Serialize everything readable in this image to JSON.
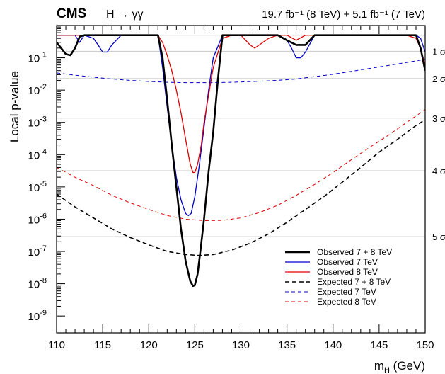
{
  "chart_data": {
    "type": "line",
    "experiment": "CMS",
    "channel": "H → γγ",
    "lumi_text": "19.7 fb⁻¹ (8 TeV) + 5.1 fb⁻¹ (7 TeV)",
    "ylabel": "Local p-value",
    "xlabel_main": "m",
    "xlabel_sub": "H",
    "xlabel_unit": " (GeV)",
    "xlim": [
      110,
      150
    ],
    "ylim": [
      3e-10,
      1.0
    ],
    "yscale": "log",
    "x_ticks": [
      110,
      115,
      120,
      125,
      130,
      135,
      140,
      145,
      150
    ],
    "y_tick_labels": [
      {
        "value": 1e-09,
        "base": "10",
        "exp": "-9"
      },
      {
        "value": 1e-08,
        "base": "10",
        "exp": "-8"
      },
      {
        "value": 1e-07,
        "base": "10",
        "exp": "-7"
      },
      {
        "value": 1e-06,
        "base": "10",
        "exp": "-6"
      },
      {
        "value": 1e-05,
        "base": "10",
        "exp": "-5"
      },
      {
        "value": 0.0001,
        "base": "10",
        "exp": "-4"
      },
      {
        "value": 0.001,
        "base": "10",
        "exp": "-3"
      },
      {
        "value": 0.01,
        "base": "10",
        "exp": "-2"
      },
      {
        "value": 0.1,
        "base": "10",
        "exp": "-1"
      }
    ],
    "significance_lines": [
      {
        "label": "1 σ",
        "p": 0.1587
      },
      {
        "label": "2 σ",
        "p": 0.02275
      },
      {
        "label": "3 σ",
        "p": 0.00135
      },
      {
        "label": "4 σ",
        "p": 3.17e-05
      },
      {
        "label": "5 σ",
        "p": 2.87e-07
      }
    ],
    "legend_position": "bottom-right",
    "series": [
      {
        "name": "Observed 7 + 8 TeV",
        "color": "#000000",
        "dash": "solid",
        "width": 2.6,
        "x": [
          110,
          110.5,
          111,
          111.5,
          112,
          112.5,
          113,
          114,
          115,
          116,
          117,
          118,
          119,
          120,
          121,
          121.5,
          122,
          122.5,
          123,
          123.5,
          124,
          124.5,
          124.8,
          125,
          125.3,
          125.6,
          126,
          126.5,
          127,
          127.5,
          128,
          129,
          130,
          131,
          132,
          133,
          134,
          135,
          136,
          137,
          138,
          139,
          140,
          145,
          149,
          149.5,
          150
        ],
        "y": [
          0.3,
          0.2,
          0.13,
          0.12,
          0.2,
          0.45,
          0.5,
          0.5,
          0.5,
          0.5,
          0.5,
          0.5,
          0.5,
          0.5,
          0.5,
          0.1,
          0.005,
          0.0002,
          1e-05,
          5e-07,
          5e-08,
          1.2e-08,
          8.5e-09,
          9e-09,
          2e-08,
          1e-07,
          1e-06,
          3e-05,
          0.0005,
          0.02,
          0.5,
          0.5,
          0.5,
          0.5,
          0.5,
          0.5,
          0.5,
          0.35,
          0.25,
          0.25,
          0.5,
          0.5,
          0.5,
          0.5,
          0.5,
          0.2,
          0.04
        ]
      },
      {
        "name": "Observed 7 TeV",
        "color": "#0000cc",
        "dash": "solid",
        "width": 1.3,
        "x": [
          110,
          111,
          112,
          112.5,
          113,
          114,
          114.5,
          115,
          115.5,
          116,
          117,
          118,
          119,
          120,
          121,
          121.5,
          122,
          122.5,
          123,
          123.5,
          124,
          124.3,
          124.6,
          125,
          125.5,
          126,
          126.5,
          127,
          128,
          129,
          130,
          133,
          134,
          135,
          135.5,
          136,
          136.5,
          137,
          138,
          140,
          145,
          148,
          149,
          149.5,
          150
        ],
        "y": [
          0.5,
          0.5,
          0.5,
          0.3,
          0.5,
          0.4,
          0.25,
          0.15,
          0.15,
          0.25,
          0.5,
          0.5,
          0.5,
          0.5,
          0.5,
          0.05,
          0.003,
          0.0002,
          2e-05,
          4e-06,
          1.5e-06,
          1.3e-06,
          1.5e-06,
          5e-06,
          5e-05,
          0.0007,
          0.01,
          0.1,
          0.5,
          0.5,
          0.5,
          0.5,
          0.5,
          0.35,
          0.2,
          0.1,
          0.1,
          0.15,
          0.5,
          0.5,
          0.5,
          0.5,
          0.5,
          0.4,
          0.15
        ]
      },
      {
        "name": "Observed 8 TeV",
        "color": "#dd0000",
        "dash": "solid",
        "width": 1.3,
        "x": [
          110,
          111,
          112,
          113,
          114,
          115,
          116,
          117,
          118,
          119,
          120,
          121,
          121.5,
          122,
          122.5,
          123,
          123.5,
          124,
          124.5,
          124.8,
          125,
          125.3,
          125.7,
          126,
          126.5,
          127,
          128,
          129,
          130,
          131,
          131.5,
          132,
          133,
          134,
          135,
          136,
          137,
          138,
          140,
          145,
          148,
          149,
          149.5,
          150
        ],
        "y": [
          0.5,
          0.5,
          0.5,
          0.5,
          0.5,
          0.5,
          0.5,
          0.5,
          0.5,
          0.5,
          0.5,
          0.5,
          0.3,
          0.12,
          0.04,
          0.01,
          0.002,
          0.0003,
          5e-05,
          2.8e-05,
          2.8e-05,
          5e-05,
          0.0002,
          0.001,
          0.007,
          0.05,
          0.4,
          0.5,
          0.5,
          0.25,
          0.2,
          0.25,
          0.4,
          0.5,
          0.5,
          0.35,
          0.5,
          0.5,
          0.5,
          0.5,
          0.5,
          0.4,
          0.2,
          0.06
        ]
      },
      {
        "name": "Expected 7 + 8 TeV",
        "color": "#000000",
        "dash": "dashed",
        "width": 1.6,
        "x": [
          110,
          112,
          114,
          116,
          118,
          120,
          122,
          124,
          125.5,
          127,
          129,
          131,
          133,
          135,
          137,
          139,
          141,
          143,
          145,
          147,
          149,
          150
        ],
        "y": [
          6e-06,
          2.4e-06,
          1.1e-06,
          5e-07,
          2.7e-07,
          1.6e-07,
          1e-07,
          8e-08,
          7.5e-08,
          8e-08,
          1.1e-07,
          1.8e-07,
          3.5e-07,
          8e-07,
          2e-06,
          5e-06,
          1.4e-05,
          4e-05,
          0.00012,
          0.0003,
          0.0008,
          0.0012
        ]
      },
      {
        "name": "Expected 7 TeV",
        "color": "#0000cc",
        "dash": "dashed",
        "width": 1.0,
        "x": [
          110,
          112,
          114,
          116,
          118,
          120,
          122,
          124,
          126,
          128,
          130,
          132,
          134,
          136,
          138,
          140,
          142,
          144,
          146,
          148,
          150
        ],
        "y": [
          0.034,
          0.029,
          0.025,
          0.022,
          0.02,
          0.0185,
          0.0175,
          0.017,
          0.017,
          0.0172,
          0.0178,
          0.0188,
          0.02,
          0.022,
          0.026,
          0.031,
          0.038,
          0.047,
          0.058,
          0.072,
          0.09
        ]
      },
      {
        "name": "Expected 8 TeV",
        "color": "#dd0000",
        "dash": "dashed",
        "width": 1.0,
        "x": [
          110,
          112,
          114,
          116,
          118,
          120,
          122,
          124,
          126,
          128,
          130,
          132,
          134,
          136,
          138,
          140,
          142,
          144,
          146,
          148,
          150
        ],
        "y": [
          4e-05,
          2e-05,
          1.1e-05,
          5.5e-06,
          3.2e-06,
          2e-06,
          1.3e-06,
          1e-06,
          9e-07,
          9.2e-07,
          1.1e-06,
          1.6e-06,
          2.7e-06,
          5.5e-06,
          1.2e-05,
          2.8e-05,
          7e-05,
          0.00017,
          0.0004,
          0.001,
          0.0025
        ]
      }
    ]
  }
}
